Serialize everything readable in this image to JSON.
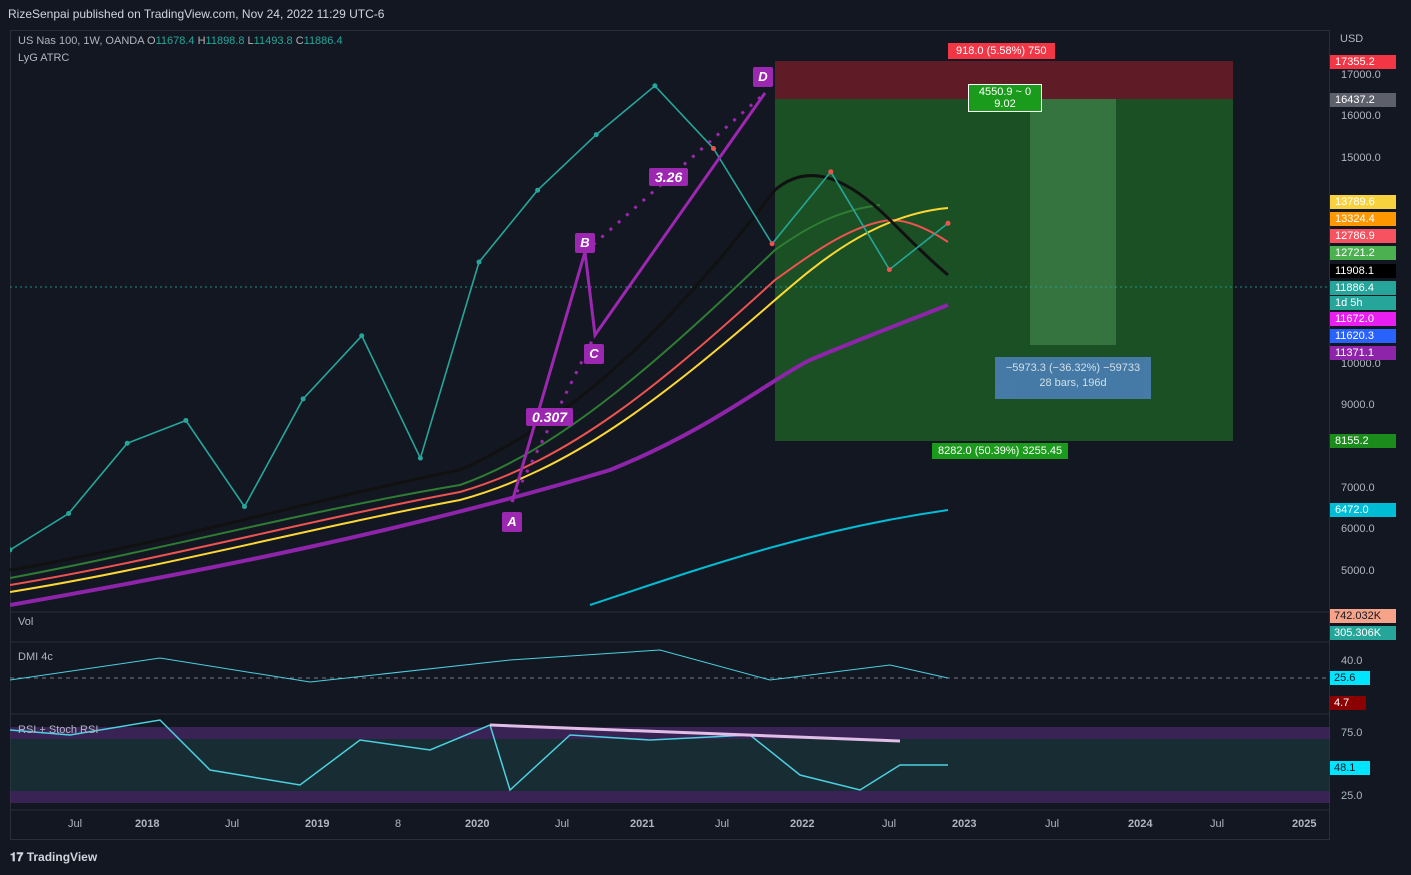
{
  "header": {
    "published": "RizeSenpai published on TradingView.com, Nov 24, 2022 11:29 UTC-6"
  },
  "legend": {
    "symbol": "US Nas 100, 1W, OANDA",
    "o_label": "O",
    "o": "11678.4",
    "h_label": "H",
    "h": "11898.8",
    "l_label": "L",
    "l": "11493.8",
    "c_label": "C",
    "c": "11886.4",
    "indicator": "LyG ATRC"
  },
  "currency": "USD",
  "price_axis_ticks": [
    "17000.0",
    "16000.0",
    "15000.0",
    "10000.0",
    "9000.0",
    "7000.0",
    "6000.0",
    "5000.0"
  ],
  "price_labels": [
    {
      "text": "17355.2",
      "color": "#f23645"
    },
    {
      "text": "16437.2",
      "color": "#5d606b"
    },
    {
      "text": "13789.6",
      "color": "#f7d23e"
    },
    {
      "text": "13324.4",
      "color": "#ff9800"
    },
    {
      "text": "12786.9",
      "color": "#f7525f"
    },
    {
      "text": "12721.2",
      "color": "#4caf50"
    },
    {
      "text": "11908.1",
      "color": "#000000"
    },
    {
      "text": "11886.4",
      "color": "#26a69a"
    },
    {
      "text": "1d 5h",
      "color": "#26a69a"
    },
    {
      "text": "11672.0",
      "color": "#e91ef0"
    },
    {
      "text": "11620.3",
      "color": "#2962ff"
    },
    {
      "text": "11371.1",
      "color": "#8e24aa"
    },
    {
      "text": "8155.2",
      "color": "#1b8b1b"
    },
    {
      "text": "6472.0",
      "color": "#00bcd4"
    }
  ],
  "position_tool": {
    "risk_label": "918.0 (5.58%) 750",
    "ratio_label_line1": "4550.9 ~ 0",
    "ratio_label_line2": "9.02",
    "reward_label": "8282.0 (50.39%) 3255.45",
    "measure_line1": "−5973.3 (−36.32%) −59733",
    "measure_line2": "28 bars, 196d"
  },
  "harmonic": {
    "points": [
      "A",
      "B",
      "C",
      "D"
    ],
    "ratio_ab": "0.307",
    "ratio_cd": "3.26"
  },
  "panes": {
    "vol": {
      "label": "Vol",
      "values": [
        "742.032K",
        "305.306K"
      ]
    },
    "dmi": {
      "label": "DMI 4c",
      "ticks": [
        "40.0"
      ],
      "values": [
        "25.6",
        "4.7"
      ]
    },
    "rsi": {
      "label": "RSI + Stoch RSI",
      "ticks": [
        "75.0",
        "25.0"
      ],
      "value": "48.1"
    }
  },
  "time_axis": [
    "Jul",
    "2018",
    "Jul",
    "2019",
    "8",
    "2020",
    "Jul",
    "2021",
    "Jul",
    "2022",
    "Jul",
    "2023",
    "Jul",
    "2024",
    "Jul",
    "2025"
  ],
  "footer": {
    "brand": "TradingView"
  },
  "chart_data": {
    "type": "line",
    "title": "US Nas 100, 1W, OANDA",
    "xlabel": "",
    "ylabel": "USD",
    "x": [
      "2017-03",
      "2017-07",
      "2018-01",
      "2018-07",
      "2018-12",
      "2019-07",
      "2020-01",
      "2020-03",
      "2020-07",
      "2021-01",
      "2021-07",
      "2021-11",
      "2022-03",
      "2022-06",
      "2022-08",
      "2022-10",
      "2022-11"
    ],
    "series": [
      {
        "values": [
          5300,
          5800,
          6900,
          7300,
          5900,
          7700,
          9000,
          6650,
          10800,
          12900,
          14800,
          16700,
          14300,
          11300,
          13500,
          10600,
          11886
        ]
      }
    ],
    "ylim": [
      4800,
      17800
    ]
  }
}
